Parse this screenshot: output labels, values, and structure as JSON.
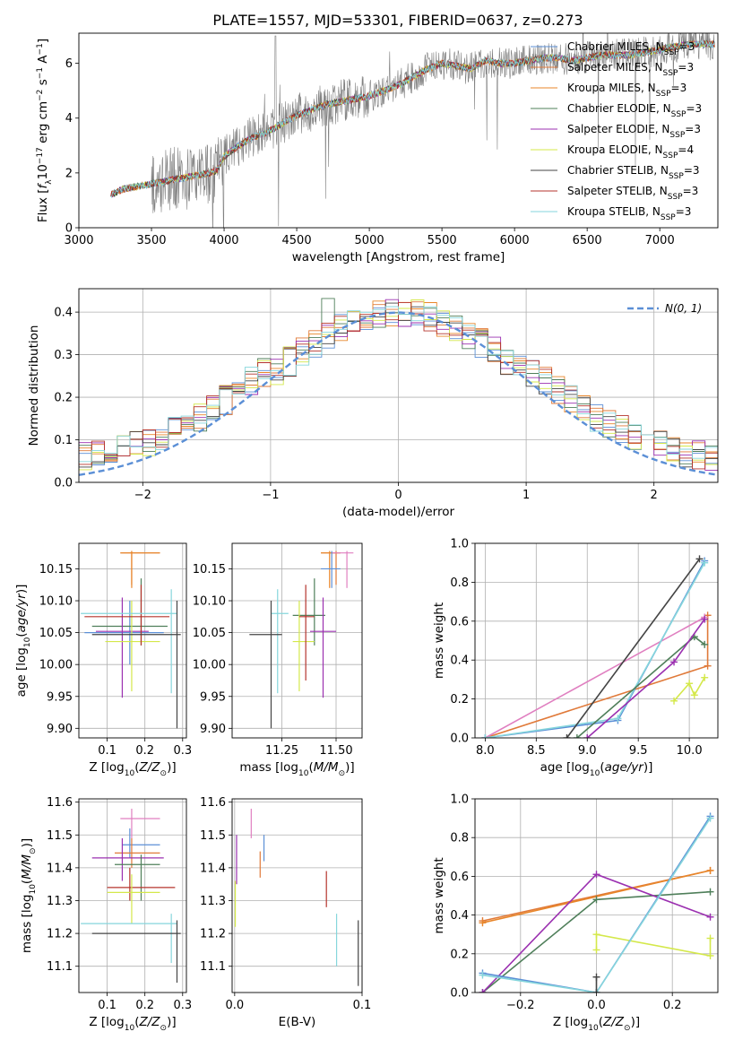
{
  "figure_title": "PLATE=1557, MJD=53301, FIBERID=0637, z=0.273",
  "colors": {
    "Chabrier MILES": "#5b8fd6",
    "Salpeter MILES": "#e07a3a",
    "Kroupa MILES": "#e8862a",
    "Chabrier ELODIE": "#4f7f5a",
    "Salpeter ELODIE": "#9b30b0",
    "Kroupa ELODIE": "#d4e84a",
    "Chabrier STELIB": "#444444",
    "Salpeter STELIB": "#b5342c",
    "Kroupa STELIB": "#86d6dc",
    "gauss": "#5b8fd6",
    "extra_pink": "#e07fc0",
    "data_gray": "#808080"
  },
  "chart_data": [
    {
      "id": "spectrum",
      "type": "line",
      "title": "PLATE=1557, MJD=53301, FIBERID=0637, z=0.273",
      "xlabel": "wavelength [Angstrom, rest frame]",
      "ylabel": "Flux [f_λ10^−17 erg cm^−2 s^−1 A^−1]",
      "xlim": [
        3000,
        7400
      ],
      "ylim": [
        0,
        7.1
      ],
      "xticks": [
        3000,
        3500,
        4000,
        4500,
        5000,
        5500,
        6000,
        6500,
        7000
      ],
      "yticks": [
        0,
        2,
        4,
        6
      ],
      "legend_position": "upper right",
      "legend": [
        {
          "label": "Chabrier MILES, N",
          "sub": "SSP",
          "suffix": "=3",
          "key": "Chabrier MILES"
        },
        {
          "label": "Salpeter MILES, N",
          "sub": "SSP",
          "suffix": "=3",
          "key": "Salpeter MILES"
        },
        {
          "label": "Kroupa MILES, N",
          "sub": "SSP",
          "suffix": "=3",
          "key": "Kroupa MILES"
        },
        {
          "label": "Chabrier ELODIE, N",
          "sub": "SSP",
          "suffix": "=3",
          "key": "Chabrier ELODIE"
        },
        {
          "label": "Salpeter ELODIE, N",
          "sub": "SSP",
          "suffix": "=3",
          "key": "Salpeter ELODIE"
        },
        {
          "label": "Kroupa ELODIE, N",
          "sub": "SSP",
          "suffix": "=4",
          "key": "Kroupa ELODIE"
        },
        {
          "label": "Chabrier STELIB, N",
          "sub": "SSP",
          "suffix": "=3",
          "key": "Chabrier STELIB"
        },
        {
          "label": "Salpeter STELIB, N",
          "sub": "SSP",
          "suffix": "=3",
          "key": "Salpeter STELIB"
        },
        {
          "label": "Kroupa STELIB, N",
          "sub": "SSP",
          "suffix": "=3",
          "key": "Kroupa STELIB"
        }
      ],
      "continuum": {
        "x": [
          3220,
          3300,
          3400,
          3500,
          3600,
          3700,
          3800,
          3900,
          3950,
          4000,
          4100,
          4200,
          4300,
          4400,
          4500,
          4600,
          4700,
          4800,
          4900,
          5000,
          5100,
          5200,
          5300,
          5400,
          5500,
          5600,
          5700,
          5800,
          5900,
          6000,
          6100,
          6200,
          6300,
          6400,
          6500,
          6600,
          6700,
          6800,
          6900,
          7000,
          7100,
          7200,
          7300
        ],
        "y": [
          1.2,
          1.4,
          1.5,
          1.6,
          1.7,
          1.8,
          1.9,
          2.0,
          2.1,
          2.6,
          3.0,
          3.3,
          3.5,
          3.8,
          4.1,
          4.3,
          4.5,
          4.6,
          4.7,
          4.8,
          5.0,
          5.2,
          5.5,
          5.8,
          6.0,
          5.9,
          5.8,
          6.1,
          6.0,
          6.0,
          6.1,
          6.2,
          6.2,
          6.1,
          6.2,
          6.3,
          6.3,
          6.3,
          6.4,
          6.5,
          6.6,
          6.7,
          6.7
        ]
      }
    },
    {
      "id": "residuals",
      "type": "histogram",
      "xlabel": "(data-model)/error",
      "ylabel": "Normed distribution",
      "xlim": [
        -2.5,
        2.5
      ],
      "ylim": [
        0,
        0.455
      ],
      "xticks": [
        -2,
        -1,
        0,
        1,
        2
      ],
      "yticks": [
        0.0,
        0.1,
        0.2,
        0.3,
        0.4
      ],
      "legend_position": "upper right",
      "legend_label": "N(0, 1)",
      "bin_width": 0.1
    },
    {
      "id": "age_vs_Z",
      "type": "errorbar",
      "xlabel": "Z [log10(Z/Z⊙)]",
      "ylabel": "age [log10(age/yr)]",
      "xlim": [
        0.025,
        0.31
      ],
      "ylim": [
        9.885,
        10.19
      ],
      "xticks": [
        0.1,
        0.2,
        0.3
      ],
      "yticks": [
        9.9,
        9.95,
        10.0,
        10.05,
        10.1,
        10.15
      ],
      "points": [
        {
          "key": "Salpeter MILES",
          "x": 0.165,
          "y": 10.175,
          "xerr": [
            0.135,
            0.24
          ],
          "yerr": [
            10.125,
            10.178
          ]
        },
        {
          "key": "Kroupa MILES",
          "x": 0.165,
          "y": 10.175,
          "xerr": [
            0.135,
            0.24
          ],
          "yerr": [
            10.12,
            10.178
          ]
        },
        {
          "key": "Chabrier MILES",
          "x": 0.16,
          "y": 10.05,
          "xerr": [
            0.04,
            0.25
          ],
          "yerr": [
            10.0,
            10.1
          ]
        },
        {
          "key": "Chabrier ELODIE",
          "x": 0.19,
          "y": 10.06,
          "xerr": [
            0.06,
            0.26
          ],
          "yerr": [
            10.03,
            10.135
          ]
        },
        {
          "key": "Salpeter ELODIE",
          "x": 0.14,
          "y": 10.052,
          "xerr": [
            0.07,
            0.21
          ],
          "yerr": [
            9.948,
            10.105
          ]
        },
        {
          "key": "Kroupa ELODIE",
          "x": 0.165,
          "y": 10.036,
          "xerr": [
            0.095,
            0.24
          ],
          "yerr": [
            9.958,
            10.1
          ]
        },
        {
          "key": "Salpeter STELIB",
          "x": 0.19,
          "y": 10.075,
          "xerr": [
            0.04,
            0.265
          ],
          "yerr": [
            10.03,
            10.125
          ]
        },
        {
          "key": "Kroupa STELIB",
          "x": 0.27,
          "y": 10.08,
          "xerr": [
            0.03,
            0.285
          ],
          "yerr": [
            9.955,
            10.118
          ]
        },
        {
          "key": "Chabrier STELIB",
          "x": 0.285,
          "y": 10.047,
          "xerr": [
            0.06,
            0.295
          ],
          "yerr": [
            9.9,
            10.1
          ]
        }
      ]
    },
    {
      "id": "age_vs_mass",
      "type": "errorbar",
      "xlabel": "mass [log10(M/M⊙)]",
      "ylabel": "",
      "xlim": [
        11.02,
        11.62
      ],
      "ylim": [
        9.885,
        10.19
      ],
      "xticks": [
        11.25,
        11.5
      ],
      "yticks": [
        9.9,
        9.95,
        10.0,
        10.05,
        10.1,
        10.15
      ],
      "points": [
        {
          "key": "Salpeter MILES",
          "x": 11.5,
          "y": 10.175,
          "xerr": [
            11.43,
            11.52
          ],
          "yerr": [
            10.125,
            10.178
          ]
        },
        {
          "key": "Kroupa MILES",
          "x": 11.47,
          "y": 10.175,
          "xerr": [
            11.43,
            11.52
          ],
          "yerr": [
            10.12,
            10.178
          ]
        },
        {
          "key": "extra_pink",
          "x": 11.55,
          "y": 10.175,
          "xerr": [
            11.48,
            11.58
          ],
          "yerr": [
            10.12,
            10.178
          ]
        },
        {
          "key": "Chabrier MILES",
          "x": 11.48,
          "y": 10.15,
          "xerr": [
            11.43,
            11.52
          ],
          "yerr": [
            10.12,
            10.178
          ]
        },
        {
          "key": "Chabrier ELODIE",
          "x": 11.4,
          "y": 10.077,
          "xerr": [
            11.3,
            11.45
          ],
          "yerr": [
            10.03,
            10.135
          ]
        },
        {
          "key": "Salpeter ELODIE",
          "x": 11.44,
          "y": 10.052,
          "xerr": [
            11.38,
            11.5
          ],
          "yerr": [
            9.948,
            10.105
          ]
        },
        {
          "key": "Kroupa ELODIE",
          "x": 11.33,
          "y": 10.036,
          "xerr": [
            11.3,
            11.4
          ],
          "yerr": [
            9.958,
            10.1
          ]
        },
        {
          "key": "Salpeter STELIB",
          "x": 11.36,
          "y": 10.075,
          "xerr": [
            11.33,
            11.4
          ],
          "yerr": [
            9.975,
            10.125
          ]
        },
        {
          "key": "Kroupa STELIB",
          "x": 11.23,
          "y": 10.08,
          "xerr": [
            11.2,
            11.28
          ],
          "yerr": [
            9.955,
            10.118
          ]
        },
        {
          "key": "Chabrier STELIB",
          "x": 11.2,
          "y": 10.047,
          "xerr": [
            11.1,
            11.25
          ],
          "yerr": [
            9.9,
            10.1
          ]
        }
      ]
    },
    {
      "id": "weight_vs_age",
      "type": "line",
      "xlabel": "age [log10(age/yr)]",
      "ylabel": "mass weight",
      "xlim": [
        7.9,
        10.28
      ],
      "ylim": [
        0,
        1.0
      ],
      "xticks": [
        8.0,
        8.5,
        9.0,
        9.5,
        10.0
      ],
      "yticks": [
        0.0,
        0.2,
        0.4,
        0.6,
        0.8,
        1.0
      ],
      "series": [
        {
          "key": "Salpeter MILES",
          "x": [
            8.0,
            10.18,
            10.18
          ],
          "y": [
            0.0,
            0.37,
            0.63
          ]
        },
        {
          "key": "extra_pink",
          "x": [
            8.0,
            10.15
          ],
          "y": [
            0.0,
            0.62
          ]
        },
        {
          "key": "Chabrier MILES",
          "x": [
            8.0,
            9.3,
            10.15
          ],
          "y": [
            0.0,
            0.09,
            0.91
          ]
        },
        {
          "key": "Kroupa STELIB",
          "x": [
            8.0,
            9.3,
            10.15
          ],
          "y": [
            0.0,
            0.1,
            0.9
          ]
        },
        {
          "key": "Chabrier STELIB",
          "x": [
            8.8,
            10.1
          ],
          "y": [
            0.0,
            0.92
          ]
        },
        {
          "key": "Chabrier ELODIE",
          "x": [
            8.9,
            10.05,
            10.15
          ],
          "y": [
            0.0,
            0.52,
            0.48
          ]
        },
        {
          "key": "Salpeter ELODIE",
          "x": [
            9.0,
            9.85,
            10.15
          ],
          "y": [
            0.0,
            0.39,
            0.61
          ]
        },
        {
          "key": "Kroupa ELODIE",
          "x": [
            9.85,
            10.0,
            10.05,
            10.15
          ],
          "y": [
            0.19,
            0.28,
            0.22,
            0.31
          ]
        }
      ]
    },
    {
      "id": "mass_vs_Z",
      "type": "errorbar",
      "xlabel": "Z [log10(Z/Z⊙)]",
      "ylabel": "mass [log10(M/M⊙)]",
      "xlim": [
        0.025,
        0.31
      ],
      "ylim": [
        11.02,
        11.61
      ],
      "xticks": [
        0.1,
        0.2,
        0.3
      ],
      "yticks": [
        11.1,
        11.2,
        11.3,
        11.4,
        11.5,
        11.6
      ],
      "points": [
        {
          "key": "extra_pink",
          "x": 0.165,
          "y": 11.55,
          "xerr": [
            0.135,
            0.24
          ],
          "yerr": [
            11.49,
            11.58
          ]
        },
        {
          "key": "Chabrier MILES",
          "x": 0.16,
          "y": 11.47,
          "xerr": [
            0.14,
            0.24
          ],
          "yerr": [
            11.43,
            11.52
          ]
        },
        {
          "key": "Salpeter MILES",
          "x": 0.165,
          "y": 11.445,
          "xerr": [
            0.12,
            0.24
          ],
          "yerr": [
            11.4,
            11.49
          ]
        },
        {
          "key": "Salpeter ELODIE",
          "x": 0.14,
          "y": 11.43,
          "xerr": [
            0.06,
            0.25
          ],
          "yerr": [
            11.36,
            11.49
          ]
        },
        {
          "key": "Chabrier ELODIE",
          "x": 0.19,
          "y": 11.41,
          "xerr": [
            0.12,
            0.24
          ],
          "yerr": [
            11.3,
            11.44
          ]
        },
        {
          "key": "Salpeter STELIB",
          "x": 0.16,
          "y": 11.34,
          "xerr": [
            0.1,
            0.28
          ],
          "yerr": [
            11.3,
            11.4
          ]
        },
        {
          "key": "Kroupa ELODIE",
          "x": 0.165,
          "y": 11.325,
          "xerr": [
            0.1,
            0.24
          ],
          "yerr": [
            11.23,
            11.38
          ]
        },
        {
          "key": "Kroupa STELIB",
          "x": 0.27,
          "y": 11.23,
          "xerr": [
            0.03,
            0.285
          ],
          "yerr": [
            11.11,
            11.26
          ]
        },
        {
          "key": "Chabrier STELIB",
          "x": 0.285,
          "y": 11.2,
          "xerr": [
            0.06,
            0.295
          ],
          "yerr": [
            11.05,
            11.24
          ]
        }
      ]
    },
    {
      "id": "mass_vs_ebv",
      "type": "errorbar",
      "xlabel": "E(B-V)",
      "ylabel": "",
      "xlim": [
        -0.002,
        0.1
      ],
      "ylim": [
        11.02,
        11.61
      ],
      "xticks": [
        0.0,
        0.1
      ],
      "yticks": [
        11.1,
        11.2,
        11.3,
        11.4,
        11.5,
        11.6
      ],
      "points": [
        {
          "key": "extra_pink",
          "x": 0.013,
          "y": 11.53,
          "xerr": [
            0.013,
            0.013
          ],
          "yerr": [
            11.49,
            11.58
          ]
        },
        {
          "key": "Chabrier MILES",
          "x": 0.023,
          "y": 11.46,
          "xerr": [
            0.023,
            0.023
          ],
          "yerr": [
            11.42,
            11.5
          ]
        },
        {
          "key": "Salpeter ELODIE",
          "x": 0.0015,
          "y": 11.43,
          "xerr": [
            0.0015,
            0.0015
          ],
          "yerr": [
            11.35,
            11.5
          ]
        },
        {
          "key": "Salpeter MILES",
          "x": 0.02,
          "y": 11.41,
          "xerr": [
            0.02,
            0.02
          ],
          "yerr": [
            11.37,
            11.45
          ]
        },
        {
          "key": "Salpeter STELIB",
          "x": 0.072,
          "y": 11.33,
          "xerr": [
            0.072,
            0.072
          ],
          "yerr": [
            11.28,
            11.39
          ]
        },
        {
          "key": "Kroupa ELODIE",
          "x": 0.0005,
          "y": 11.3,
          "xerr": [
            0.0005,
            0.0005
          ],
          "yerr": [
            11.22,
            11.36
          ]
        },
        {
          "key": "Kroupa STELIB",
          "x": 0.08,
          "y": 11.18,
          "xerr": [
            0.08,
            0.08
          ],
          "yerr": [
            11.1,
            11.26
          ]
        },
        {
          "key": "Chabrier STELIB",
          "x": 0.097,
          "y": 11.15,
          "xerr": [
            0.097,
            0.097
          ],
          "yerr": [
            11.04,
            11.24
          ]
        }
      ]
    },
    {
      "id": "weight_vs_Z",
      "type": "line",
      "xlabel": "Z [log10(Z/Z⊙)]",
      "ylabel": "mass weight",
      "xlim": [
        -0.32,
        0.32
      ],
      "ylim": [
        0,
        1.0
      ],
      "xticks": [
        -0.2,
        0.0,
        0.2
      ],
      "yticks": [
        0.0,
        0.2,
        0.4,
        0.6,
        0.8,
        1.0
      ],
      "series": [
        {
          "key": "Salpeter MILES",
          "x": [
            -0.3,
            0.3
          ],
          "y": [
            0.37,
            0.63
          ]
        },
        {
          "key": "Kroupa MILES",
          "x": [
            -0.3,
            0.3
          ],
          "y": [
            0.36,
            0.63
          ]
        },
        {
          "key": "Chabrier ELODIE",
          "x": [
            -0.3,
            0.0,
            0.3
          ],
          "y": [
            0.0,
            0.48,
            0.52
          ]
        },
        {
          "key": "Salpeter ELODIE",
          "x": [
            -0.3,
            0.0,
            0.3
          ],
          "y": [
            0.0,
            0.61,
            0.39
          ]
        },
        {
          "key": "Kroupa ELODIE",
          "x": [
            0.0,
            0.0,
            0.3,
            0.3
          ],
          "y": [
            0.22,
            0.3,
            0.19,
            0.28
          ]
        },
        {
          "key": "Chabrier MILES",
          "x": [
            -0.3,
            0.0,
            0.3
          ],
          "y": [
            0.1,
            0.0,
            0.91
          ]
        },
        {
          "key": "Kroupa STELIB",
          "x": [
            -0.3,
            0.0,
            0.3
          ],
          "y": [
            0.09,
            0.0,
            0.9
          ]
        },
        {
          "key": "Chabrier STELIB",
          "x": [
            0.0,
            0.0
          ],
          "y": [
            0.0,
            0.08
          ]
        }
      ]
    }
  ]
}
